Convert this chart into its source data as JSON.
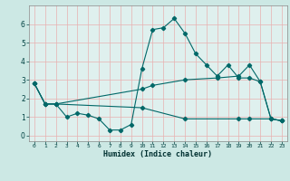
{
  "title": "",
  "xlabel": "Humidex (Indice chaleur)",
  "ylabel": "",
  "bg_color": "#cce8e4",
  "plot_bg_color": "#dff0ee",
  "grid_color": "#e8b0b0",
  "line_color": "#006868",
  "xlim": [
    -0.5,
    23.5
  ],
  "ylim": [
    -0.3,
    7.0
  ],
  "xticks": [
    0,
    1,
    2,
    3,
    4,
    5,
    6,
    7,
    8,
    9,
    10,
    11,
    12,
    13,
    14,
    15,
    16,
    17,
    18,
    19,
    20,
    21,
    22,
    23
  ],
  "yticks": [
    0,
    1,
    2,
    3,
    4,
    5,
    6
  ],
  "series1_x": [
    0,
    1,
    2,
    3,
    4,
    5,
    6,
    7,
    8,
    9,
    10,
    11,
    12,
    13,
    14,
    15,
    16,
    17,
    18,
    19,
    20,
    21,
    22,
    23
  ],
  "series1_y": [
    2.8,
    1.7,
    1.7,
    1.0,
    1.2,
    1.1,
    0.9,
    0.3,
    0.3,
    0.6,
    3.6,
    5.7,
    5.8,
    6.3,
    5.5,
    4.4,
    3.8,
    3.2,
    3.8,
    3.1,
    3.1,
    2.9,
    0.9,
    0.8
  ],
  "series2_x": [
    0,
    1,
    2,
    10,
    11,
    14,
    17,
    19,
    20,
    21,
    22,
    23
  ],
  "series2_y": [
    2.8,
    1.7,
    1.7,
    2.5,
    2.7,
    3.0,
    3.1,
    3.2,
    3.8,
    2.9,
    0.9,
    0.8
  ],
  "series3_x": [
    0,
    1,
    2,
    10,
    14,
    19,
    20,
    22,
    23
  ],
  "series3_y": [
    2.8,
    1.7,
    1.7,
    1.5,
    0.9,
    0.9,
    0.9,
    0.9,
    0.8
  ]
}
